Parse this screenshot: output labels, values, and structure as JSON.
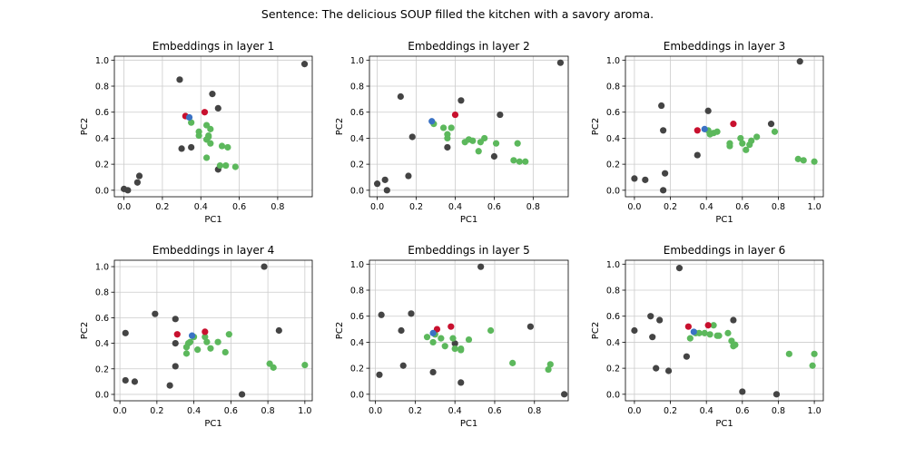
{
  "suptitle": "Sentence: The delicious SOUP filled the kitchen with a savory aroma.",
  "colors": {
    "other": "#444444",
    "related": "#5cb85c",
    "target": "#c8102e",
    "query": "#3a72c4",
    "grid": "#cccccc"
  },
  "chart_data": [
    {
      "type": "scatter",
      "title": "Embeddings in layer 1",
      "xlabel": "PC1",
      "ylabel": "PC2",
      "grid": true,
      "xlim": [
        -0.05,
        0.98
      ],
      "ylim": [
        -0.05,
        1.03
      ],
      "xticks": [
        "0.0",
        "0.2",
        "0.4",
        "0.6",
        "0.8"
      ],
      "yticks": [
        "0.0",
        "0.2",
        "0.4",
        "0.6",
        "0.8",
        "1.0"
      ],
      "series": [
        {
          "group": "other",
          "points": [
            [
              0.0,
              0.01
            ],
            [
              0.02,
              0.0
            ],
            [
              0.07,
              0.06
            ],
            [
              0.08,
              0.11
            ],
            [
              0.29,
              0.85
            ],
            [
              0.3,
              0.32
            ],
            [
              0.35,
              0.33
            ],
            [
              0.46,
              0.74
            ],
            [
              0.49,
              0.63
            ],
            [
              0.49,
              0.16
            ],
            [
              0.94,
              0.97
            ]
          ]
        },
        {
          "group": "related",
          "points": [
            [
              0.35,
              0.52
            ],
            [
              0.39,
              0.45
            ],
            [
              0.39,
              0.42
            ],
            [
              0.43,
              0.5
            ],
            [
              0.43,
              0.39
            ],
            [
              0.44,
              0.41
            ],
            [
              0.44,
              0.42
            ],
            [
              0.45,
              0.36
            ],
            [
              0.45,
              0.47
            ],
            [
              0.43,
              0.25
            ],
            [
              0.5,
              0.19
            ],
            [
              0.51,
              0.34
            ],
            [
              0.53,
              0.19
            ],
            [
              0.54,
              0.33
            ],
            [
              0.58,
              0.18
            ]
          ]
        },
        {
          "group": "target",
          "points": [
            [
              0.32,
              0.57
            ],
            [
              0.42,
              0.6
            ]
          ]
        },
        {
          "group": "query",
          "points": [
            [
              0.34,
              0.56
            ]
          ]
        }
      ]
    },
    {
      "type": "scatter",
      "title": "Embeddings in layer 2",
      "xlabel": "PC1",
      "ylabel": "PC2",
      "grid": true,
      "xlim": [
        -0.04,
        0.98
      ],
      "ylim": [
        -0.05,
        1.03
      ],
      "xticks": [
        "0.0",
        "0.2",
        "0.4",
        "0.6",
        "0.8"
      ],
      "yticks": [
        "0.0",
        "0.2",
        "0.4",
        "0.6",
        "0.8",
        "1.0"
      ],
      "series": [
        {
          "group": "other",
          "points": [
            [
              0.0,
              0.05
            ],
            [
              0.04,
              0.08
            ],
            [
              0.05,
              0.0
            ],
            [
              0.12,
              0.72
            ],
            [
              0.16,
              0.11
            ],
            [
              0.18,
              0.41
            ],
            [
              0.36,
              0.33
            ],
            [
              0.43,
              0.69
            ],
            [
              0.6,
              0.26
            ],
            [
              0.63,
              0.58
            ],
            [
              0.94,
              0.98
            ]
          ]
        },
        {
          "group": "related",
          "points": [
            [
              0.29,
              0.51
            ],
            [
              0.34,
              0.48
            ],
            [
              0.36,
              0.43
            ],
            [
              0.36,
              0.4
            ],
            [
              0.38,
              0.48
            ],
            [
              0.45,
              0.37
            ],
            [
              0.47,
              0.39
            ],
            [
              0.49,
              0.38
            ],
            [
              0.52,
              0.3
            ],
            [
              0.53,
              0.37
            ],
            [
              0.55,
              0.4
            ],
            [
              0.61,
              0.36
            ],
            [
              0.7,
              0.23
            ],
            [
              0.72,
              0.36
            ],
            [
              0.73,
              0.22
            ],
            [
              0.76,
              0.22
            ]
          ]
        },
        {
          "group": "target",
          "points": [
            [
              0.4,
              0.58
            ]
          ]
        },
        {
          "group": "query",
          "points": [
            [
              0.28,
              0.53
            ]
          ]
        }
      ]
    },
    {
      "type": "scatter",
      "title": "Embeddings in layer 3",
      "xlabel": "PC1",
      "ylabel": "PC2",
      "grid": true,
      "xlim": [
        -0.05,
        1.05
      ],
      "ylim": [
        -0.05,
        1.03
      ],
      "xticks": [
        "0.0",
        "0.2",
        "0.4",
        "0.6",
        "0.8",
        "1.0"
      ],
      "yticks": [
        "0.0",
        "0.2",
        "0.4",
        "0.6",
        "0.8",
        "1.0"
      ],
      "series": [
        {
          "group": "other",
          "points": [
            [
              0.0,
              0.09
            ],
            [
              0.06,
              0.08
            ],
            [
              0.15,
              0.65
            ],
            [
              0.16,
              0.46
            ],
            [
              0.16,
              0.0
            ],
            [
              0.17,
              0.13
            ],
            [
              0.35,
              0.27
            ],
            [
              0.41,
              0.61
            ],
            [
              0.76,
              0.51
            ],
            [
              0.92,
              0.99
            ]
          ]
        },
        {
          "group": "related",
          "points": [
            [
              0.41,
              0.46
            ],
            [
              0.42,
              0.43
            ],
            [
              0.44,
              0.44
            ],
            [
              0.46,
              0.45
            ],
            [
              0.53,
              0.36
            ],
            [
              0.53,
              0.34
            ],
            [
              0.59,
              0.4
            ],
            [
              0.6,
              0.36
            ],
            [
              0.62,
              0.31
            ],
            [
              0.64,
              0.35
            ],
            [
              0.65,
              0.38
            ],
            [
              0.68,
              0.41
            ],
            [
              0.78,
              0.45
            ],
            [
              0.91,
              0.24
            ],
            [
              0.94,
              0.23
            ],
            [
              1.0,
              0.22
            ]
          ]
        },
        {
          "group": "target",
          "points": [
            [
              0.35,
              0.46
            ],
            [
              0.55,
              0.51
            ]
          ]
        },
        {
          "group": "query",
          "points": [
            [
              0.39,
              0.47
            ]
          ]
        }
      ]
    },
    {
      "type": "scatter",
      "title": "Embeddings in layer 4",
      "xlabel": "PC1",
      "ylabel": "PC2",
      "grid": true,
      "xlim": [
        -0.03,
        1.04
      ],
      "ylim": [
        -0.05,
        1.05
      ],
      "xticks": [
        "0.0",
        "0.2",
        "0.4",
        "0.6",
        "0.8",
        "1.0"
      ],
      "yticks": [
        "0.0",
        "0.2",
        "0.4",
        "0.6",
        "0.8",
        "1.0"
      ],
      "series": [
        {
          "group": "other",
          "points": [
            [
              0.03,
              0.48
            ],
            [
              0.03,
              0.11
            ],
            [
              0.08,
              0.1
            ],
            [
              0.19,
              0.63
            ],
            [
              0.27,
              0.07
            ],
            [
              0.3,
              0.59
            ],
            [
              0.3,
              0.4
            ],
            [
              0.3,
              0.22
            ],
            [
              0.66,
              0.0
            ],
            [
              0.78,
              1.0
            ],
            [
              0.86,
              0.5
            ]
          ]
        },
        {
          "group": "related",
          "points": [
            [
              0.36,
              0.37
            ],
            [
              0.37,
              0.4
            ],
            [
              0.38,
              0.41
            ],
            [
              0.36,
              0.32
            ],
            [
              0.4,
              0.45
            ],
            [
              0.42,
              0.35
            ],
            [
              0.46,
              0.45
            ],
            [
              0.47,
              0.41
            ],
            [
              0.49,
              0.36
            ],
            [
              0.53,
              0.41
            ],
            [
              0.57,
              0.33
            ],
            [
              0.59,
              0.47
            ],
            [
              0.81,
              0.24
            ],
            [
              0.83,
              0.21
            ],
            [
              1.0,
              0.23
            ]
          ]
        },
        {
          "group": "target",
          "points": [
            [
              0.31,
              0.47
            ],
            [
              0.46,
              0.49
            ]
          ]
        },
        {
          "group": "query",
          "points": [
            [
              0.39,
              0.46
            ]
          ]
        }
      ]
    },
    {
      "type": "scatter",
      "title": "Embeddings in layer 5",
      "xlabel": "PC1",
      "ylabel": "PC2",
      "grid": true,
      "xlim": [
        -0.03,
        0.97
      ],
      "ylim": [
        -0.05,
        1.03
      ],
      "xticks": [
        "0.0",
        "0.2",
        "0.4",
        "0.6",
        "0.8"
      ],
      "yticks": [
        "0.0",
        "0.2",
        "0.4",
        "0.6",
        "0.8",
        "1.0"
      ],
      "series": [
        {
          "group": "other",
          "points": [
            [
              0.02,
              0.15
            ],
            [
              0.03,
              0.61
            ],
            [
              0.13,
              0.49
            ],
            [
              0.14,
              0.22
            ],
            [
              0.18,
              0.62
            ],
            [
              0.29,
              0.17
            ],
            [
              0.4,
              0.39
            ],
            [
              0.43,
              0.09
            ],
            [
              0.53,
              0.98
            ],
            [
              0.78,
              0.52
            ],
            [
              0.95,
              0.0
            ]
          ]
        },
        {
          "group": "related",
          "points": [
            [
              0.26,
              0.44
            ],
            [
              0.29,
              0.4
            ],
            [
              0.3,
              0.46
            ],
            [
              0.33,
              0.43
            ],
            [
              0.35,
              0.37
            ],
            [
              0.39,
              0.43
            ],
            [
              0.4,
              0.35
            ],
            [
              0.43,
              0.34
            ],
            [
              0.43,
              0.35
            ],
            [
              0.47,
              0.42
            ],
            [
              0.58,
              0.49
            ],
            [
              0.69,
              0.24
            ],
            [
              0.87,
              0.19
            ],
            [
              0.88,
              0.23
            ]
          ]
        },
        {
          "group": "target",
          "points": [
            [
              0.31,
              0.5
            ],
            [
              0.38,
              0.52
            ]
          ]
        },
        {
          "group": "query",
          "points": [
            [
              0.29,
              0.47
            ]
          ]
        }
      ]
    },
    {
      "type": "scatter",
      "title": "Embeddings in layer 6",
      "xlabel": "PC1",
      "ylabel": "PC2",
      "grid": true,
      "xlim": [
        -0.05,
        1.05
      ],
      "ylim": [
        -0.05,
        1.03
      ],
      "xticks": [
        "0.0",
        "0.2",
        "0.4",
        "0.6",
        "0.8",
        "1.0"
      ],
      "yticks": [
        "0.0",
        "0.2",
        "0.4",
        "0.6",
        "0.8",
        "1.0"
      ],
      "series": [
        {
          "group": "other",
          "points": [
            [
              0.0,
              0.49
            ],
            [
              0.09,
              0.6
            ],
            [
              0.1,
              0.44
            ],
            [
              0.12,
              0.2
            ],
            [
              0.14,
              0.57
            ],
            [
              0.19,
              0.18
            ],
            [
              0.25,
              0.97
            ],
            [
              0.29,
              0.29
            ],
            [
              0.55,
              0.57
            ],
            [
              0.6,
              0.02
            ],
            [
              0.79,
              0.0
            ]
          ]
        },
        {
          "group": "related",
          "points": [
            [
              0.31,
              0.43
            ],
            [
              0.34,
              0.47
            ],
            [
              0.36,
              0.47
            ],
            [
              0.39,
              0.47
            ],
            [
              0.42,
              0.46
            ],
            [
              0.44,
              0.53
            ],
            [
              0.46,
              0.45
            ],
            [
              0.47,
              0.45
            ],
            [
              0.52,
              0.47
            ],
            [
              0.54,
              0.41
            ],
            [
              0.55,
              0.37
            ],
            [
              0.56,
              0.38
            ],
            [
              0.86,
              0.31
            ],
            [
              0.99,
              0.22
            ],
            [
              1.0,
              0.31
            ]
          ]
        },
        {
          "group": "target",
          "points": [
            [
              0.3,
              0.52
            ],
            [
              0.41,
              0.53
            ]
          ]
        },
        {
          "group": "query",
          "points": [
            [
              0.33,
              0.48
            ]
          ]
        }
      ]
    }
  ]
}
